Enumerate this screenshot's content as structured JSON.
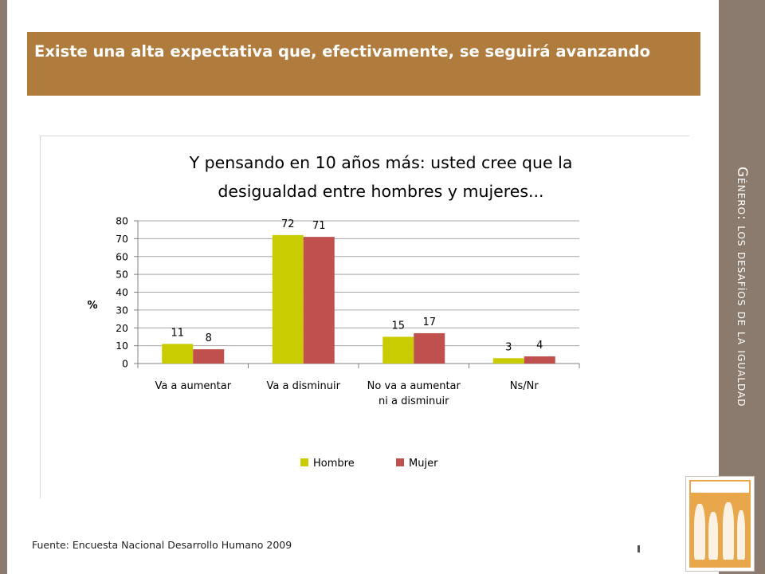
{
  "slide": {
    "side_title": "Género: los desafíos de la igualdad",
    "banner_title": "Existe una alta expectativa que, efectivamente, se seguirá avanzando",
    "source": "Fuente: Encuesta Nacional Desarrollo Humano 2009",
    "colors": {
      "banner": "#b07c3e",
      "sidebar": "#8a7b6e"
    }
  },
  "chart_data": {
    "type": "bar",
    "title_lines": [
      "Y pensando  en 10 años más: usted cree que la",
      "desigualdad entre hombres  y mujeres..."
    ],
    "ylabel": "%",
    "xlabel": "",
    "ylim": [
      0,
      80
    ],
    "yticks": [
      "0",
      "10",
      "20",
      "30",
      "40",
      "50",
      "60",
      "70",
      "80"
    ],
    "categories": [
      [
        "Va a aumentar"
      ],
      [
        "Va a disminuir"
      ],
      [
        "No va a aumentar",
        "ni a disminuir"
      ],
      [
        "Ns/Nr"
      ]
    ],
    "series": [
      {
        "name": "Hombre",
        "color": "#c8cc00",
        "values": [
          11,
          72,
          15,
          3
        ]
      },
      {
        "name": "Mujer",
        "color": "#c0504d",
        "values": [
          8,
          71,
          17,
          4
        ]
      }
    ],
    "grid": true,
    "legend": "bottom"
  }
}
